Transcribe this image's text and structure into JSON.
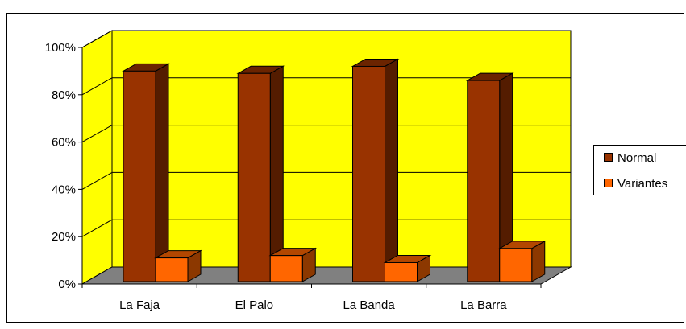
{
  "chart_data": {
    "type": "bar",
    "style": "3d-clustered-column",
    "categories": [
      "La Faja",
      "El Palo",
      "La Banda",
      "La Barra"
    ],
    "series": [
      {
        "name": "Normal",
        "values": [
          89,
          88,
          91,
          85
        ],
        "color": "#993300"
      },
      {
        "name": "Variantes",
        "values": [
          10,
          11,
          8,
          14
        ],
        "color": "#ff6600"
      }
    ],
    "title": "",
    "xlabel": "",
    "ylabel": "",
    "ylim": [
      0,
      100
    ],
    "yticks": [
      "0%",
      "20%",
      "40%",
      "60%",
      "80%",
      "100%"
    ],
    "grid": true,
    "legend_position": "right",
    "colors": {
      "plot_wall": "#ffff00",
      "floor": "#808080",
      "border": "#000000"
    }
  }
}
